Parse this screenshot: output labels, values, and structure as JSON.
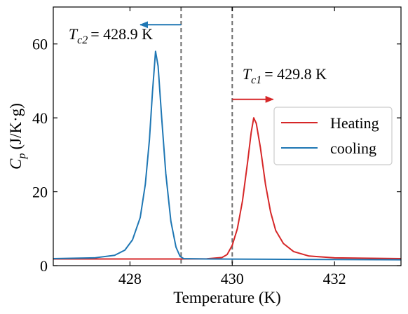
{
  "chart_data": {
    "type": "line",
    "xlabel": "Temperature (K)",
    "ylabel_main": "C",
    "ylabel_sub": "p",
    "ylabel_unit": "(J/K·g)",
    "xlim": [
      426.5,
      433.3
    ],
    "ylim": [
      0,
      70
    ],
    "xticks": [
      428,
      430,
      432
    ],
    "xtick_labels": [
      "428",
      "430",
      "432"
    ],
    "yticks": [
      0,
      20,
      40,
      60
    ],
    "ytick_labels": [
      "0",
      "20",
      "40",
      "60"
    ],
    "tick_direction": "in",
    "grid": false,
    "legend_position": "center-right",
    "series": [
      {
        "name": "Heating",
        "color": "#d62728",
        "peak_x": 430.42,
        "peak_y": 40,
        "baseline": 1.8,
        "points": [
          [
            426.5,
            1.8
          ],
          [
            429.0,
            1.8
          ],
          [
            429.5,
            1.85
          ],
          [
            429.8,
            2.2
          ],
          [
            429.9,
            3.0
          ],
          [
            430.0,
            5.5
          ],
          [
            430.1,
            10.0
          ],
          [
            430.2,
            17.5
          ],
          [
            430.3,
            28.0
          ],
          [
            430.37,
            36.0
          ],
          [
            430.42,
            40.0
          ],
          [
            430.47,
            38.5
          ],
          [
            430.55,
            32.0
          ],
          [
            430.65,
            22.0
          ],
          [
            430.75,
            14.5
          ],
          [
            430.85,
            9.5
          ],
          [
            431.0,
            6.0
          ],
          [
            431.2,
            3.8
          ],
          [
            431.5,
            2.6
          ],
          [
            432.0,
            2.1
          ],
          [
            433.3,
            1.9
          ]
        ]
      },
      {
        "name": "cooling",
        "color": "#1f77b4",
        "peak_x": 428.5,
        "peak_y": 58,
        "baseline": 1.8,
        "points": [
          [
            426.5,
            1.9
          ],
          [
            427.3,
            2.1
          ],
          [
            427.7,
            2.8
          ],
          [
            427.9,
            4.2
          ],
          [
            428.05,
            7.0
          ],
          [
            428.2,
            13.0
          ],
          [
            428.3,
            22.0
          ],
          [
            428.38,
            34.0
          ],
          [
            428.44,
            47.0
          ],
          [
            428.5,
            58.0
          ],
          [
            428.55,
            54.0
          ],
          [
            428.62,
            40.0
          ],
          [
            428.7,
            25.0
          ],
          [
            428.8,
            12.0
          ],
          [
            428.9,
            5.0
          ],
          [
            428.98,
            2.5
          ],
          [
            429.05,
            1.9
          ],
          [
            429.5,
            1.8
          ],
          [
            431.0,
            1.7
          ],
          [
            433.3,
            1.6
          ]
        ]
      }
    ],
    "vlines": [
      429.0,
      430.0
    ],
    "annotations": [
      {
        "id": "tc2",
        "symbol": "T",
        "sub": "c2",
        "value": "= 428.9 K",
        "label_x": 426.8,
        "label_y": 61.3,
        "arrow_from": [
          429.0,
          65.2
        ],
        "arrow_to": [
          428.2,
          65.2
        ],
        "color": "#1f77b4"
      },
      {
        "id": "tc1",
        "symbol": "T",
        "sub": "c1",
        "value": "= 429.8 K",
        "label_x": 430.2,
        "label_y": 50.5,
        "arrow_from": [
          430.0,
          45.0
        ],
        "arrow_to": [
          430.8,
          45.0
        ],
        "color": "#d62728"
      }
    ]
  }
}
